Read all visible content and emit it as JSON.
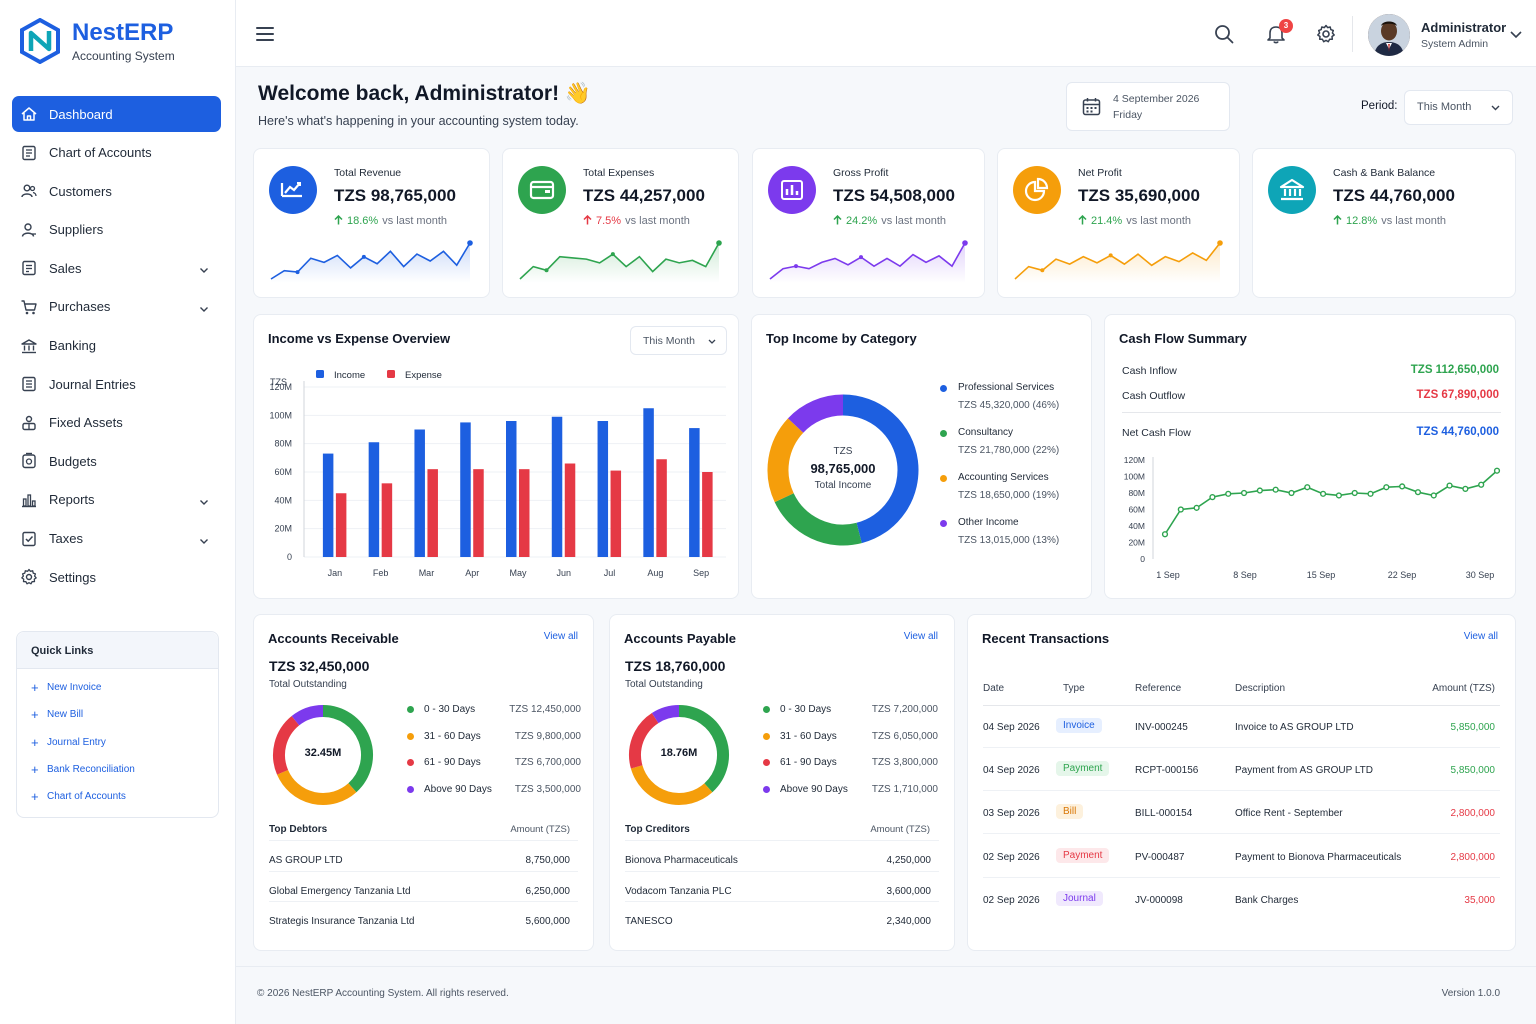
{
  "brand": {
    "name": "NestERP",
    "subtitle": "Accounting System"
  },
  "nav": [
    {
      "label": "Dashboard",
      "icon": "home-icon",
      "active": true,
      "expandable": false
    },
    {
      "label": "Chart of Accounts",
      "icon": "ledger-icon",
      "active": false,
      "expandable": false
    },
    {
      "label": "Customers",
      "icon": "users-icon",
      "active": false,
      "expandable": false
    },
    {
      "label": "Suppliers",
      "icon": "supplier-icon",
      "active": false,
      "expandable": false
    },
    {
      "label": "Sales",
      "icon": "sales-icon",
      "active": false,
      "expandable": true
    },
    {
      "label": "Purchases",
      "icon": "cart-icon",
      "active": false,
      "expandable": true
    },
    {
      "label": "Banking",
      "icon": "bank-icon",
      "active": false,
      "expandable": false
    },
    {
      "label": "Journal Entries",
      "icon": "journal-icon",
      "active": false,
      "expandable": false
    },
    {
      "label": "Fixed Assets",
      "icon": "assets-icon",
      "active": false,
      "expandable": false
    },
    {
      "label": "Budgets",
      "icon": "budget-icon",
      "active": false,
      "expandable": false
    },
    {
      "label": "Reports",
      "icon": "reports-icon",
      "active": false,
      "expandable": true
    },
    {
      "label": "Taxes",
      "icon": "taxes-icon",
      "active": false,
      "expandable": true
    },
    {
      "label": "Settings",
      "icon": "gear-icon",
      "active": false,
      "expandable": false
    }
  ],
  "quick_links": {
    "title": "Quick Links",
    "items": [
      "New Invoice",
      "New Bill",
      "Journal Entry",
      "Bank Reconciliation",
      "Chart of Accounts"
    ]
  },
  "topbar": {
    "notifications": "3",
    "user_name": "Administrator",
    "user_role": "System Admin"
  },
  "welcome": {
    "title": "Welcome back, Administrator! 👋",
    "subtitle": "Here's what's happening in your accounting system today."
  },
  "date": {
    "line1": "4 September 2026",
    "line2": "Friday"
  },
  "period": {
    "label": "Period:",
    "value": "This Month"
  },
  "kpis": [
    {
      "label": "Total Revenue",
      "value": "TZS 98,765,000",
      "change": "18.6%",
      "change_suffix": "vs last month",
      "direction": "up",
      "color": "#1d5fe0",
      "icon": "chart-up-icon",
      "trend": [
        20,
        26,
        25,
        35,
        32,
        37,
        28,
        36,
        31,
        40,
        29,
        38,
        33,
        40,
        30,
        46
      ],
      "show_spark": true
    },
    {
      "label": "Total Expenses",
      "value": "TZS 44,257,000",
      "change": "7.5%",
      "change_suffix": "vs last month",
      "direction": "up",
      "color": "#2ea44f",
      "icon": "wallet-icon",
      "trend": [
        18,
        28,
        25,
        36,
        35,
        34,
        31,
        38,
        28,
        36,
        24,
        34,
        31,
        33,
        28,
        47
      ],
      "show_spark": true
    },
    {
      "label": "Gross Profit",
      "value": "TZS 54,508,000",
      "change": "24.2%",
      "change_suffix": "vs last month",
      "direction": "up",
      "color": "#7c3aed",
      "icon": "bar-chart-icon",
      "trend": [
        20,
        28,
        30,
        28,
        33,
        36,
        31,
        37,
        30,
        36,
        30,
        39,
        33,
        38,
        30,
        48
      ],
      "show_spark": true
    },
    {
      "label": "Net Profit",
      "value": "TZS 35,690,000",
      "change": "21.4%",
      "change_suffix": "vs last month",
      "direction": "up",
      "color": "#f59e0b",
      "icon": "pie-icon",
      "trend": [
        18,
        28,
        25,
        34,
        30,
        36,
        31,
        37,
        30,
        38,
        29,
        36,
        32,
        39,
        33,
        47
      ],
      "show_spark": true
    },
    {
      "label": "Cash & Bank Balance",
      "value": "TZS 44,760,000",
      "change": "12.8%",
      "change_suffix": "vs last month",
      "direction": "up",
      "color": "#0ea5b7",
      "icon": "bank-icon",
      "trend": [],
      "show_spark": false
    }
  ],
  "income_expense": {
    "title": "Income vs Expense Overview",
    "filter": "This Month",
    "unit_label": "TZS",
    "chart_data": {
      "type": "bar",
      "categories": [
        "Jan",
        "Feb",
        "Mar",
        "Apr",
        "May",
        "Jun",
        "Jul",
        "Aug",
        "Sep"
      ],
      "series": [
        {
          "name": "Income",
          "color": "#1d5fe0",
          "values": [
            73,
            81,
            90,
            95,
            96,
            99,
            96,
            105,
            91
          ]
        },
        {
          "name": "Expense",
          "color": "#e53945",
          "values": [
            45,
            52,
            62,
            62,
            62,
            66,
            61,
            69,
            60
          ]
        }
      ],
      "ylim": [
        0,
        120
      ],
      "yticks": [
        "0",
        "20M",
        "40M",
        "60M",
        "80M",
        "100M",
        "120M"
      ]
    }
  },
  "top_income": {
    "title": "Top Income by Category",
    "center_top": "TZS",
    "center_value": "98,765,000",
    "center_label": "Total Income",
    "chart_data": {
      "type": "pie",
      "labels": [
        "Professional Services",
        "Consultancy",
        "Accounting Services",
        "Other Income"
      ],
      "values": [
        46,
        22,
        19,
        13
      ],
      "colors": [
        "#1d5fe0",
        "#2ea44f",
        "#f59e0b",
        "#7c3aed"
      ],
      "amounts": [
        "TZS 45,320,000 (46%)",
        "TZS 21,780,000 (22%)",
        "TZS 18,650,000 (19%)",
        "TZS 13,015,000 (13%)"
      ]
    }
  },
  "cash_flow": {
    "title": "Cash Flow Summary",
    "inflow_label": "Cash Inflow",
    "inflow_value": "TZS 112,650,000",
    "outflow_label": "Cash Outflow",
    "outflow_value": "TZS 67,890,000",
    "net_label": "Net Cash Flow",
    "net_value": "TZS 44,760,000",
    "chart_data": {
      "type": "line",
      "xticks": [
        "1 Sep",
        "8 Sep",
        "15 Sep",
        "22 Sep",
        "30 Sep"
      ],
      "values": [
        30,
        60,
        62,
        75,
        79,
        80,
        83,
        84,
        80,
        87,
        79,
        77,
        80,
        79,
        87,
        88,
        81,
        77,
        89,
        85,
        90,
        107
      ],
      "ylim": [
        0,
        120
      ],
      "yticks": [
        "0",
        "20M",
        "40M",
        "60M",
        "80M",
        "100M",
        "120M"
      ],
      "color": "#2ea44f"
    }
  },
  "receivable": {
    "title": "Accounts Receivable",
    "view_all": "View all",
    "total": "TZS 32,450,000",
    "total_label": "Total Outstanding",
    "center": "32.45M",
    "chart_data": {
      "type": "pie",
      "labels": [
        "0 - 30 Days",
        "31 - 60 Days",
        "61 - 90 Days",
        "Above 90 Days"
      ],
      "values": [
        12450000,
        9800000,
        6700000,
        3500000
      ],
      "colors": [
        "#2ea44f",
        "#f59e0b",
        "#e53945",
        "#7c3aed"
      ],
      "amounts": [
        "TZS 12,450,000",
        "TZS 9,800,000",
        "TZS 6,700,000",
        "TZS 3,500,000"
      ]
    },
    "list_title": "Top Debtors",
    "list_amount_head": "Amount (TZS)",
    "rows": [
      {
        "name": "AS GROUP LTD",
        "amount": "8,750,000"
      },
      {
        "name": "Global Emergency Tanzania Ltd",
        "amount": "6,250,000"
      },
      {
        "name": "Strategis Insurance Tanzania Ltd",
        "amount": "5,600,000"
      }
    ]
  },
  "payable": {
    "title": "Accounts Payable",
    "view_all": "View all",
    "total": "TZS 18,760,000",
    "total_label": "Total Outstanding",
    "center": "18.76M",
    "chart_data": {
      "type": "pie",
      "labels": [
        "0 - 30 Days",
        "31 - 60 Days",
        "61 - 90 Days",
        "Above 90 Days"
      ],
      "values": [
        7200000,
        6050000,
        3800000,
        1710000
      ],
      "colors": [
        "#2ea44f",
        "#f59e0b",
        "#e53945",
        "#7c3aed"
      ],
      "amounts": [
        "TZS 7,200,000",
        "TZS 6,050,000",
        "TZS 3,800,000",
        "TZS 1,710,000"
      ]
    },
    "list_title": "Top Creditors",
    "list_amount_head": "Amount (TZS)",
    "rows": [
      {
        "name": "Bionova Pharmaceuticals",
        "amount": "4,250,000"
      },
      {
        "name": "Vodacom Tanzania PLC",
        "amount": "3,600,000"
      },
      {
        "name": "TANESCO",
        "amount": "2,340,000"
      }
    ]
  },
  "transactions": {
    "title": "Recent Transactions",
    "view_all": "View all",
    "headers": [
      "Date",
      "Type",
      "Reference",
      "Description",
      "Amount (TZS)"
    ],
    "rows": [
      {
        "date": "04 Sep 2026",
        "type": "Invoice",
        "ref": "INV-000245",
        "desc": "Invoice to AS GROUP LTD",
        "amount": "5,850,000",
        "type_color": "#1d5fe0",
        "type_bg": "#e6efff",
        "amount_color": "#2ea44f"
      },
      {
        "date": "04 Sep 2026",
        "type": "Payment",
        "ref": "RCPT-000156",
        "desc": "Payment from AS GROUP LTD",
        "amount": "5,850,000",
        "type_color": "#2ea44f",
        "type_bg": "#e5f6ea",
        "amount_color": "#2ea44f"
      },
      {
        "date": "03 Sep 2026",
        "type": "Bill",
        "ref": "BILL-000154",
        "desc": "Office Rent - September",
        "amount": "2,800,000",
        "type_color": "#d97706",
        "type_bg": "#fdf1dd",
        "amount_color": "#e53945"
      },
      {
        "date": "02 Sep 2026",
        "type": "Payment",
        "ref": "PV-000487",
        "desc": "Payment to Bionova Pharmaceuticals",
        "amount": "2,800,000",
        "type_color": "#e53945",
        "type_bg": "#fde8ea",
        "amount_color": "#e53945"
      },
      {
        "date": "02 Sep 2026",
        "type": "Journal",
        "ref": "JV-000098",
        "desc": "Bank Charges",
        "amount": "35,000",
        "type_color": "#7c3aed",
        "type_bg": "#f0e9fd",
        "amount_color": "#e53945"
      }
    ]
  },
  "footer": {
    "copyright": "© 2026 NestERP Accounting System. All rights reserved.",
    "version": "Version 1.0.0"
  }
}
